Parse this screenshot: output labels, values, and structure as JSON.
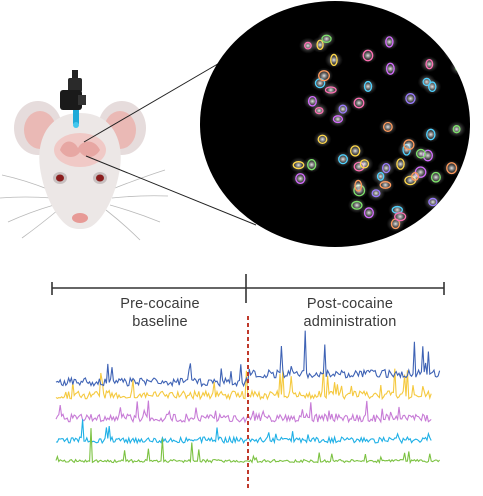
{
  "labels": {
    "pre_line1": "Pre-cocaine",
    "pre_line2": "baseline",
    "post_line1": "Post-cocaine",
    "post_line2": "administration"
  },
  "colors": {
    "trace_blue": "#3f63b5",
    "trace_yellow": "#f5c93f",
    "trace_purple": "#c77bd6",
    "trace_cyan": "#1fb0e6",
    "trace_green": "#7cc242",
    "injection_marker": "#c0392b",
    "timeline": "#333333",
    "lens_background": "#000000"
  },
  "icons": {
    "subject": "mouse-head-icon",
    "device": "miniscope-camera-icon",
    "field": "microscope-view-icon"
  },
  "traces": [
    "blue",
    "yellow",
    "purple",
    "cyan",
    "green"
  ]
}
